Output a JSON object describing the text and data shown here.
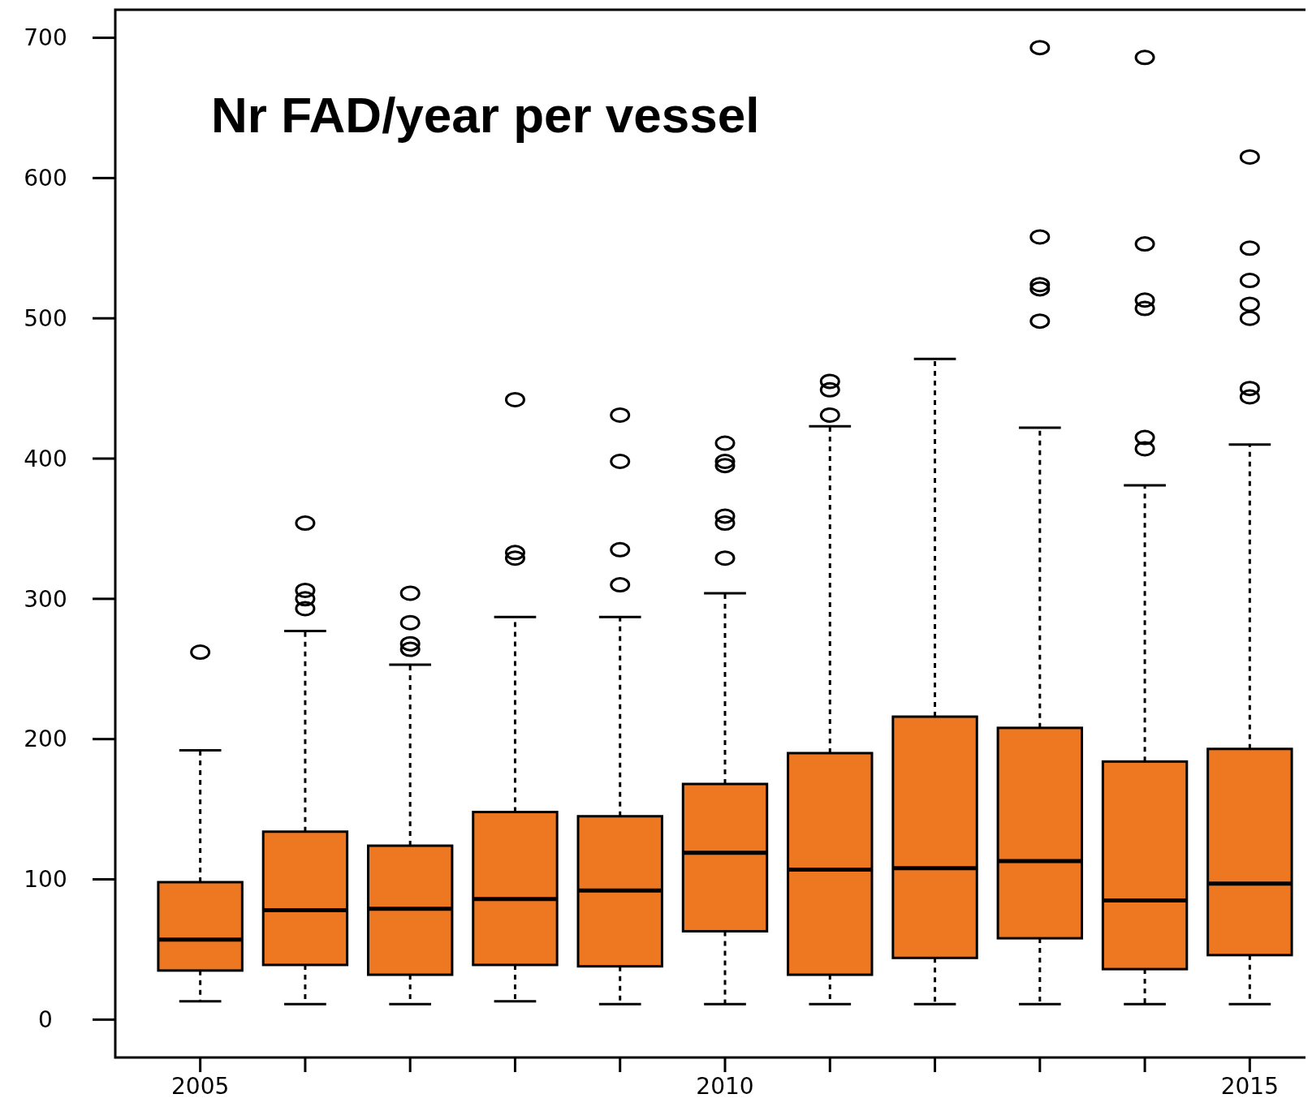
{
  "chart_data": {
    "type": "box",
    "title": "Nr FAD/year per vessel",
    "categories": [
      "2005",
      null,
      null,
      null,
      null,
      "2010",
      null,
      null,
      null,
      null,
      "2015"
    ],
    "color": "#ee7722",
    "ylim": [
      -27,
      720
    ],
    "yticks": [
      0,
      100,
      200,
      300,
      400,
      500,
      600,
      700
    ],
    "grid": false,
    "boxes": [
      {
        "low": 13,
        "q1": 35,
        "median": 57,
        "q3": 98,
        "high": 192,
        "outliers": [
          262
        ]
      },
      {
        "low": 11,
        "q1": 39,
        "median": 78,
        "q3": 134,
        "high": 277,
        "outliers": [
          293,
          300,
          306,
          354
        ]
      },
      {
        "low": 11,
        "q1": 32,
        "median": 79,
        "q3": 124,
        "high": 253,
        "outliers": [
          264,
          268,
          283,
          304
        ]
      },
      {
        "low": 13,
        "q1": 39,
        "median": 86,
        "q3": 148,
        "high": 287,
        "outliers": [
          329,
          333,
          442
        ]
      },
      {
        "low": 11,
        "q1": 38,
        "median": 92,
        "q3": 145,
        "high": 287,
        "outliers": [
          310,
          335,
          398,
          431
        ]
      },
      {
        "low": 11,
        "q1": 63,
        "median": 119,
        "q3": 168,
        "high": 304,
        "outliers": [
          329,
          354,
          359,
          395,
          398,
          411
        ]
      },
      {
        "low": 11,
        "q1": 32,
        "median": 107,
        "q3": 190,
        "high": 423,
        "outliers": [
          431,
          449,
          455
        ]
      },
      {
        "low": 11,
        "q1": 44,
        "median": 108,
        "q3": 216,
        "high": 471
      },
      {
        "low": 11,
        "q1": 58,
        "median": 113,
        "q3": 208,
        "high": 422,
        "outliers": [
          498,
          521,
          524,
          558,
          693
        ]
      },
      {
        "low": 11,
        "q1": 36,
        "median": 85,
        "q3": 184,
        "high": 381,
        "outliers": [
          407,
          415,
          507,
          513,
          553,
          686
        ]
      },
      {
        "low": 11,
        "q1": 46,
        "median": 97,
        "q3": 193,
        "high": 410,
        "outliers": [
          444,
          450,
          500,
          510,
          527,
          550,
          615
        ]
      }
    ]
  }
}
